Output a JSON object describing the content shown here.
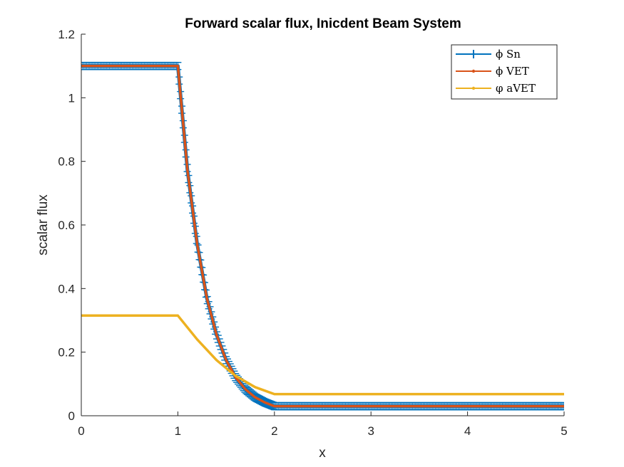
{
  "chart_data": {
    "type": "line",
    "title": "Forward scalar flux, Inicdent Beam System",
    "xlabel": "x",
    "ylabel": "scalar flux",
    "xlim": [
      0,
      5
    ],
    "ylim": [
      0,
      1.2
    ],
    "xticks": [
      0,
      1,
      2,
      3,
      4,
      5
    ],
    "yticks": [
      0,
      0.2,
      0.4,
      0.6,
      0.8,
      1,
      1.2
    ],
    "xtick_labels": [
      "0",
      "1",
      "2",
      "3",
      "4",
      "5"
    ],
    "ytick_labels": [
      "0",
      "0.2",
      "0.4",
      "0.6",
      "0.8",
      "1",
      "1.2"
    ],
    "grid": false,
    "legend_position": "top-right",
    "series": [
      {
        "name": "ϕ Sn",
        "color": "#0072BD",
        "marker": "error-bars",
        "x": [
          0,
          1,
          1.1,
          1.2,
          1.3,
          1.4,
          1.5,
          1.6,
          1.7,
          1.8,
          1.9,
          2,
          5
        ],
        "y": [
          1.1,
          1.1,
          0.77,
          0.54,
          0.37,
          0.255,
          0.175,
          0.12,
          0.083,
          0.058,
          0.042,
          0.03,
          0.03
        ]
      },
      {
        "name": "ϕ VET",
        "color": "#D95319",
        "marker": "dot",
        "x": [
          0,
          1,
          1.1,
          1.2,
          1.3,
          1.4,
          1.5,
          1.6,
          1.7,
          1.8,
          1.9,
          2,
          5
        ],
        "y": [
          1.1,
          1.1,
          0.77,
          0.54,
          0.37,
          0.255,
          0.175,
          0.12,
          0.083,
          0.058,
          0.042,
          0.03,
          0.03
        ]
      },
      {
        "name": "φ aVET",
        "color": "#EDB120",
        "marker": "dot",
        "x": [
          0,
          1,
          1.2,
          1.4,
          1.6,
          1.8,
          2,
          5
        ],
        "y": [
          0.315,
          0.315,
          0.24,
          0.175,
          0.125,
          0.09,
          0.068,
          0.068
        ]
      }
    ]
  }
}
